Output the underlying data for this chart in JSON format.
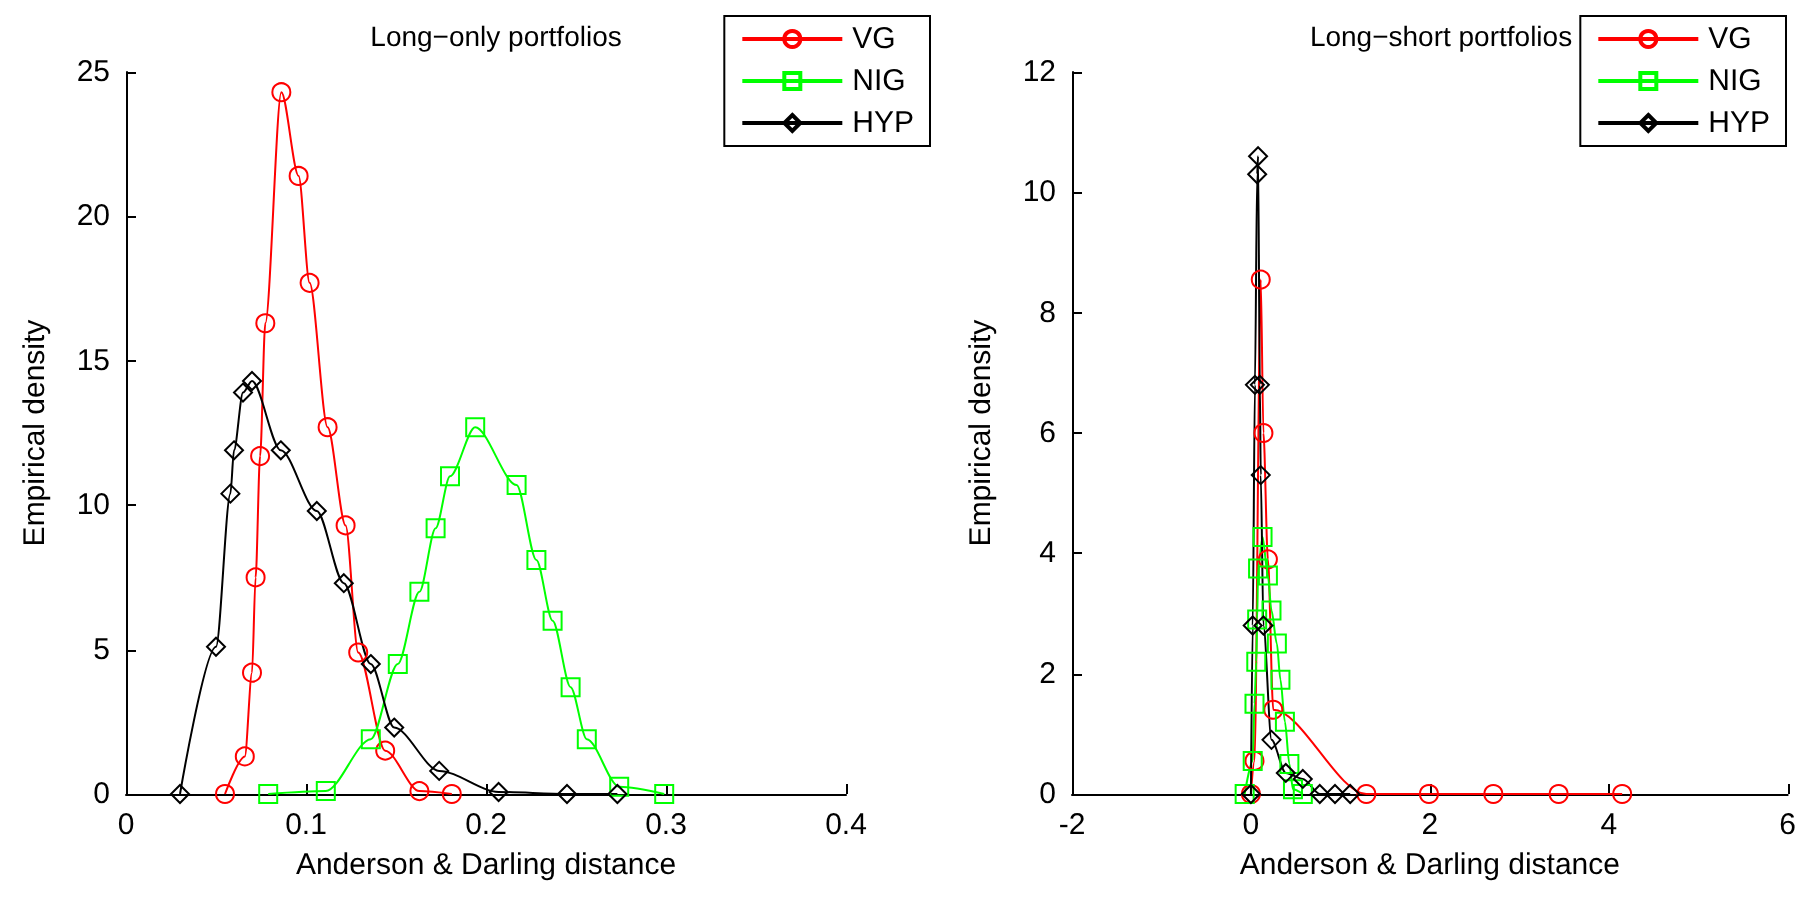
{
  "chart_data": [
    {
      "type": "line",
      "title": "Long−only portfolios",
      "xlabel": "Anderson & Darling distance",
      "ylabel": "Empirical density",
      "xlim": [
        0,
        0.4
      ],
      "xticks": [
        0,
        0.1,
        0.2,
        0.3,
        0.4
      ],
      "ylim": [
        0,
        25
      ],
      "yticks": [
        0,
        5,
        10,
        15,
        20,
        25
      ],
      "grid": false,
      "legend": "top right",
      "series": [
        {
          "name": "VG",
          "color": "#ff0000",
          "marker": "circle",
          "x": [
            0.055,
            0.066,
            0.07,
            0.072,
            0.0745,
            0.0774,
            0.0863,
            0.0959,
            0.102,
            0.112,
            0.122,
            0.129,
            0.144,
            0.163,
            0.181
          ],
          "values": [
            0,
            1.3,
            4.2,
            7.5,
            11.7,
            16.3,
            24.3,
            21.4,
            17.7,
            12.7,
            9.3,
            4.9,
            1.5,
            0.1,
            0
          ]
        },
        {
          "name": "NIG",
          "color": "#00ff00",
          "marker": "square",
          "x": [
            0.079,
            0.111,
            0.136,
            0.151,
            0.163,
            0.172,
            0.18,
            0.194,
            0.217,
            0.228,
            0.237,
            0.247,
            0.256,
            0.274,
            0.299
          ],
          "values": [
            0,
            0.1,
            1.9,
            4.5,
            7.0,
            9.2,
            11.0,
            12.7,
            10.7,
            8.1,
            6.0,
            3.7,
            1.9,
            0.25,
            0
          ]
        },
        {
          "name": "HYP",
          "color": "#000000",
          "marker": "diamond",
          "x": [
            0.03,
            0.05,
            0.058,
            0.06,
            0.065,
            0.07,
            0.086,
            0.106,
            0.121,
            0.136,
            0.149,
            0.174,
            0.207,
            0.245,
            0.273
          ],
          "values": [
            0,
            5.1,
            10.4,
            11.9,
            13.9,
            14.3,
            11.9,
            9.8,
            7.3,
            4.5,
            2.3,
            0.8,
            0.07,
            0,
            0
          ]
        }
      ]
    },
    {
      "type": "line",
      "title": "Long−short portfolios",
      "xlabel": "Anderson & Darling distance",
      "ylabel": "Empirical density",
      "xlim": [
        -2,
        6
      ],
      "xticks": [
        -2,
        0,
        2,
        4,
        6
      ],
      "ylim": [
        0,
        12
      ],
      "yticks": [
        0,
        2,
        4,
        6,
        8,
        10,
        12
      ],
      "grid": false,
      "legend": "top right",
      "series": [
        {
          "name": "VG",
          "color": "#ff0000",
          "marker": "circle",
          "x": [
            0,
            0.04,
            0.11,
            0.14,
            0.19,
            0.25,
            1.29,
            1.99,
            2.71,
            3.44,
            4.15
          ],
          "values": [
            0,
            0.55,
            8.55,
            6.0,
            3.9,
            1.4,
            0,
            0,
            0,
            0,
            0
          ]
        },
        {
          "name": "NIG",
          "color": "#00ff00",
          "marker": "square",
          "x": [
            -0.07,
            0.02,
            0.04,
            0.06,
            0.07,
            0.08,
            0.13,
            0.19,
            0.23,
            0.29,
            0.33,
            0.38,
            0.43,
            0.47,
            0.58
          ],
          "values": [
            0,
            0.55,
            1.5,
            2.2,
            2.9,
            3.75,
            4.27,
            3.63,
            3.05,
            2.5,
            1.9,
            1.2,
            0.5,
            0.08,
            0
          ]
        },
        {
          "name": "HYP",
          "color": "#000000",
          "marker": "diamond",
          "x": [
            0,
            0.02,
            0.045,
            0.07,
            0.08,
            0.1,
            0.11,
            0.14,
            0.23,
            0.39,
            0.58,
            0.77,
            0.94,
            1.11
          ],
          "values": [
            0,
            2.8,
            6.8,
            10.3,
            10.6,
            6.8,
            5.3,
            2.8,
            0.9,
            0.35,
            0.25,
            0,
            0,
            0
          ]
        }
      ]
    }
  ]
}
